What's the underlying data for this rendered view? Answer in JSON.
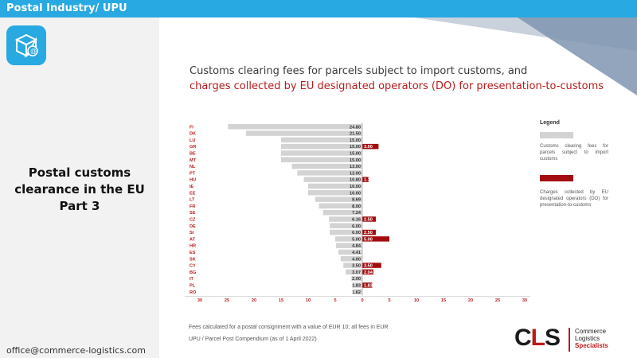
{
  "header": {
    "title": "Postal Industry/ UPU"
  },
  "sidebar": {
    "icon": "parcel-email-icon",
    "title_lines": [
      "Postal customs",
      "clearance in the EU",
      "Part 3"
    ],
    "email": "office@commerce-logistics.com"
  },
  "colors": {
    "accent": "#29a9e1",
    "customs": "#d3d3d3",
    "do_charge": "#a30d10",
    "title_red": "#b91c1c"
  },
  "chart_data": {
    "type": "bar",
    "title": "Customs clearing fees for parcels subject to import customs, and",
    "subtitle": "charges collected by EU designated operators (DO) for presentation-to-customs",
    "categories": [
      "FI",
      "DK",
      "LU",
      "GR",
      "BE",
      "MT",
      "NL",
      "PT",
      "HU",
      "IE",
      "EE",
      "LT",
      "FR",
      "SE",
      "CZ",
      "DE",
      "SI",
      "AT",
      "HR",
      "ES",
      "SK",
      "CY",
      "BG",
      "IT",
      "PL",
      "RO"
    ],
    "series": [
      {
        "name": "Customs clearing fees for parcels subject to import customs",
        "values": [
          24.8,
          21.5,
          15.0,
          15.0,
          15.0,
          15.0,
          13.0,
          12.0,
          10.8,
          10.0,
          10.0,
          8.69,
          8.0,
          7.24,
          6.16,
          6.0,
          6.0,
          5.0,
          4.84,
          4.41,
          4.0,
          3.5,
          3.07,
          2.0,
          1.83,
          1.62
        ],
        "labels": [
          "24.80",
          "21.50",
          "15.00",
          "15.00",
          "15.00",
          "15.00",
          "13.00",
          "12.00",
          "10.80",
          "10.00",
          "10.00",
          "8.69",
          "8.00",
          "7.24",
          "6.16",
          "6.00",
          "6.00",
          "5.00",
          "4.84",
          "4.41",
          "4.00",
          "3.50",
          "3.07",
          "2.00",
          "1.83",
          "1.62"
        ]
      },
      {
        "name": "Charges collected by EU designated operators (DO) for presentation-to-customs",
        "values": [
          null,
          null,
          null,
          3.0,
          null,
          null,
          null,
          null,
          1.16,
          null,
          null,
          null,
          null,
          null,
          2.5,
          null,
          2.5,
          5.0,
          null,
          null,
          null,
          3.5,
          2.04,
          null,
          1.83,
          null
        ],
        "labels": [
          null,
          null,
          null,
          "3.00",
          null,
          null,
          null,
          null,
          "1.16",
          null,
          null,
          null,
          null,
          null,
          "2.50",
          null,
          "2.50",
          "5.00",
          null,
          null,
          null,
          "3.50",
          "2.04",
          null,
          "1.83",
          null
        ]
      }
    ],
    "x_ticks_left": [
      "30",
      "25",
      "20",
      "15",
      "10",
      "5",
      "0"
    ],
    "x_ticks_right": [
      "5",
      "10",
      "15",
      "20",
      "25",
      "30"
    ],
    "xlim": [
      -30,
      30
    ],
    "legend": {
      "title": "Legend",
      "position": "right"
    },
    "grid": false,
    "footnotes": [
      "Fees calculated for a postal consignment with a value of EUR 10; all fees in EUR",
      "UPU / Parcel Post Compendium (as of 1 April 2022)"
    ]
  },
  "logo": {
    "letters_c": "C",
    "letters_l": "L",
    "letters_s": "S",
    "line1": "Commerce",
    "line2": "Logistics",
    "line3": "Specialists"
  }
}
